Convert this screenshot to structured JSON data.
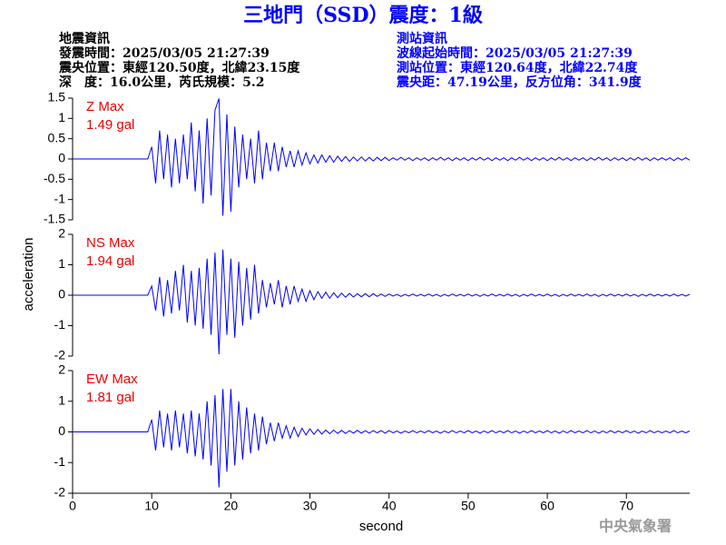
{
  "header": {
    "title": "三地門（SSD）震度：1級",
    "left": [
      "地震資訊",
      "發震時間：2025/03/05 21:27:39",
      "震央位置：東經120.50度，北緯23.15度",
      "深　度：16.0公里，芮氏規模：5.2"
    ],
    "right": [
      "測站資訊",
      "波線起始時間：2025/03/05 21:27:39",
      "測站位置：東經120.64度，北緯22.74度",
      "震央距：47.19公里，反方位角：341.9度"
    ],
    "footer": "中央氣象署"
  },
  "chart_data": {
    "type": "line",
    "xlabel": "second",
    "ylabel": "acceleration",
    "xlim": [
      0,
      78
    ],
    "xticks": [
      0,
      10,
      20,
      30,
      40,
      50,
      60,
      70
    ],
    "x": [
      0,
      0.5,
      1,
      1.5,
      2,
      2.5,
      3,
      3.5,
      4,
      4.5,
      5,
      5.5,
      6,
      6.5,
      7,
      7.5,
      8,
      8.5,
      9,
      9.5,
      10,
      10.5,
      11,
      11.5,
      12,
      12.5,
      13,
      13.5,
      14,
      14.5,
      15,
      15.5,
      16,
      16.5,
      17,
      17.5,
      18,
      18.5,
      19,
      19.5,
      20,
      20.5,
      21,
      21.5,
      22,
      22.5,
      23,
      23.5,
      24,
      24.5,
      25,
      25.5,
      26,
      26.5,
      27,
      27.5,
      28,
      28.5,
      29,
      29.5,
      30,
      30.5,
      31,
      31.5,
      32,
      32.5,
      33,
      33.5,
      34,
      34.5,
      35,
      35.5,
      36,
      36.5,
      37,
      37.5,
      38,
      38.5,
      39,
      39.5,
      40,
      40.5,
      41,
      41.5,
      42,
      42.5,
      43,
      43.5,
      44,
      44.5,
      45,
      45.5,
      46,
      46.5,
      47,
      47.5,
      48,
      48.5,
      49,
      49.5,
      50,
      50.5,
      51,
      51.5,
      52,
      52.5,
      53,
      53.5,
      54,
      54.5,
      55,
      55.5,
      56,
      56.5,
      57,
      57.5,
      58,
      58.5,
      59,
      59.5,
      60,
      60.5,
      61,
      61.5,
      62,
      62.5,
      63,
      63.5,
      64,
      64.5,
      65,
      65.5,
      66,
      66.5,
      67,
      67.5,
      68,
      68.5,
      69,
      69.5,
      70,
      70.5,
      71,
      71.5,
      72,
      72.5,
      73,
      73.5,
      74,
      74.5,
      75,
      75.5,
      76,
      76.5,
      77,
      77.5,
      78
    ],
    "panels": [
      {
        "label": "Z Max",
        "annotation": "1.49 gal",
        "color": "#0000ff",
        "ylim": [
          -1.5,
          1.5
        ],
        "yticks": [
          1.5,
          1,
          0.5,
          0,
          -0.5,
          -1,
          -1.5
        ],
        "values": [
          0,
          0,
          0,
          0,
          0,
          0,
          0,
          0,
          0,
          0,
          0,
          0,
          0,
          0,
          0,
          0,
          0,
          0,
          0,
          0,
          0.3,
          -0.6,
          0.7,
          -0.5,
          0.6,
          -0.7,
          0.5,
          -0.6,
          0.6,
          -0.5,
          0.9,
          -0.8,
          0.7,
          -1.1,
          1.0,
          -0.9,
          1.2,
          1.49,
          -1.4,
          1.1,
          -1.3,
          0.8,
          -0.7,
          0.6,
          -0.5,
          0.5,
          -0.6,
          0.7,
          -0.5,
          0.4,
          -0.3,
          0.4,
          -0.3,
          0.3,
          -0.2,
          0.2,
          -0.2,
          0.2,
          -0.15,
          0.15,
          -0.12,
          0.1,
          -0.1,
          0.1,
          -0.08,
          0.08,
          -0.08,
          0.07,
          -0.06,
          0.06,
          -0.06,
          0.05,
          -0.05,
          0.05,
          -0.05,
          0.04,
          -0.05,
          0.04,
          -0.04,
          0.04,
          -0.04,
          0.03,
          -0.03,
          0.04,
          -0.03,
          0.03,
          -0.04,
          0.03,
          -0.03,
          0.03,
          -0.04,
          0.03,
          -0.03,
          0.04,
          -0.03,
          0.03,
          -0.04,
          0.03,
          -0.03,
          0.03,
          -0.04,
          0.03,
          -0.03,
          0.04,
          -0.03,
          0.03,
          -0.04,
          0.03,
          -0.03,
          0.03,
          -0.04,
          0.03,
          -0.03,
          0.04,
          -0.03,
          0.03,
          -0.04,
          0.03,
          -0.03,
          0.03,
          -0.04,
          0.03,
          -0.03,
          0.04,
          -0.03,
          0.03,
          -0.04,
          0.03,
          -0.03,
          0.03,
          -0.04,
          0.03,
          -0.03,
          0.04,
          -0.03,
          0.03,
          -0.04,
          0.03,
          -0.03,
          0.03,
          -0.04,
          0.03,
          -0.03,
          0.04,
          -0.03,
          0.03,
          -0.04,
          0.03,
          -0.03,
          0.03,
          -0.03,
          0.03,
          -0.04,
          0.03,
          -0.03,
          0.03,
          -0.03
        ]
      },
      {
        "label": "NS Max",
        "annotation": "1.94 gal",
        "color": "#0000ff",
        "ylim": [
          -2,
          2
        ],
        "yticks": [
          2,
          1,
          0,
          -1,
          -2
        ],
        "values": [
          0,
          0,
          0,
          0,
          0,
          0,
          0,
          0,
          0,
          0,
          0,
          0,
          0,
          0,
          0,
          0,
          0,
          0,
          0,
          0,
          0.3,
          -0.5,
          0.6,
          -0.7,
          0.5,
          -0.6,
          0.8,
          -0.5,
          1.0,
          -0.9,
          0.8,
          -1.0,
          0.9,
          -1.1,
          1.2,
          -1.3,
          1.4,
          -1.94,
          1.5,
          -1.3,
          1.2,
          -1.4,
          1.1,
          -1.0,
          0.9,
          -0.8,
          1.0,
          -0.6,
          0.5,
          -0.4,
          0.4,
          -0.3,
          0.5,
          -0.4,
          0.3,
          -0.3,
          0.3,
          -0.2,
          0.2,
          -0.2,
          0.15,
          -0.15,
          0.12,
          -0.1,
          0.1,
          -0.1,
          0.08,
          -0.08,
          0.07,
          -0.07,
          0.06,
          -0.06,
          0.05,
          -0.05,
          0.05,
          -0.05,
          0.05,
          -0.04,
          0.04,
          -0.04,
          0.04,
          -0.03,
          0.03,
          -0.04,
          0.03,
          -0.03,
          0.04,
          -0.03,
          0.03,
          -0.03,
          0.04,
          -0.03,
          0.03,
          -0.04,
          0.03,
          -0.03,
          0.04,
          -0.03,
          0.03,
          -0.03,
          0.04,
          -0.03,
          0.03,
          -0.04,
          0.03,
          -0.03,
          0.04,
          -0.03,
          0.03,
          -0.03,
          0.04,
          -0.03,
          0.03,
          -0.04,
          0.03,
          -0.03,
          0.04,
          -0.03,
          0.03,
          -0.03,
          0.04,
          -0.03,
          0.03,
          -0.04,
          0.03,
          -0.03,
          0.04,
          -0.03,
          0.03,
          -0.03,
          0.04,
          -0.03,
          0.03,
          -0.04,
          0.03,
          -0.03,
          0.04,
          -0.03,
          0.03,
          -0.03,
          0.04,
          -0.03,
          0.03,
          -0.04,
          0.03,
          -0.03,
          0.04,
          -0.03,
          0.03,
          -0.03,
          0.03,
          -0.03,
          0.04,
          -0.03,
          0.03,
          -0.03,
          0.03
        ]
      },
      {
        "label": "EW Max",
        "annotation": "1.81 gal",
        "color": "#0000ff",
        "ylim": [
          -2,
          2
        ],
        "yticks": [
          2,
          1,
          0,
          -1,
          -2
        ],
        "values": [
          0,
          0,
          0,
          0,
          0,
          0,
          0,
          0,
          0,
          0,
          0,
          0,
          0,
          0,
          0,
          0,
          0,
          0,
          0,
          0,
          0.4,
          -0.6,
          0.7,
          -0.5,
          0.6,
          -0.6,
          0.7,
          -0.5,
          0.6,
          -0.7,
          0.7,
          -0.8,
          0.6,
          -0.9,
          1.0,
          -1.1,
          1.2,
          -1.81,
          1.4,
          -1.3,
          1.4,
          -1.1,
          1.0,
          -0.9,
          0.8,
          -0.7,
          0.6,
          -0.6,
          0.5,
          -0.4,
          0.3,
          -0.3,
          0.3,
          -0.2,
          0.2,
          -0.2,
          0.15,
          -0.15,
          0.12,
          -0.1,
          0.1,
          -0.08,
          0.08,
          -0.07,
          0.06,
          -0.06,
          0.06,
          -0.05,
          0.05,
          -0.05,
          0.04,
          -0.04,
          0.05,
          -0.04,
          0.04,
          -0.04,
          0.04,
          -0.03,
          0.04,
          -0.04,
          0.04,
          -0.03,
          0.03,
          -0.04,
          0.03,
          -0.03,
          0.04,
          -0.03,
          0.03,
          -0.03,
          0.04,
          -0.03,
          0.03,
          -0.04,
          0.03,
          -0.03,
          0.04,
          -0.03,
          0.03,
          -0.03,
          0.04,
          -0.03,
          0.03,
          -0.04,
          0.03,
          -0.03,
          0.04,
          -0.03,
          0.03,
          -0.03,
          0.04,
          -0.03,
          0.03,
          -0.04,
          0.03,
          -0.03,
          0.04,
          -0.03,
          0.03,
          -0.03,
          0.04,
          -0.03,
          0.03,
          -0.04,
          0.03,
          -0.03,
          0.04,
          -0.03,
          0.03,
          -0.03,
          0.04,
          -0.03,
          0.03,
          -0.04,
          0.03,
          -0.03,
          0.04,
          -0.03,
          0.03,
          -0.03,
          0.04,
          -0.03,
          0.03,
          -0.04,
          0.03,
          -0.03,
          0.04,
          -0.03,
          0.03,
          -0.03,
          0.03,
          -0.03,
          0.04,
          -0.03,
          0.03,
          -0.03,
          0.03
        ]
      }
    ]
  }
}
